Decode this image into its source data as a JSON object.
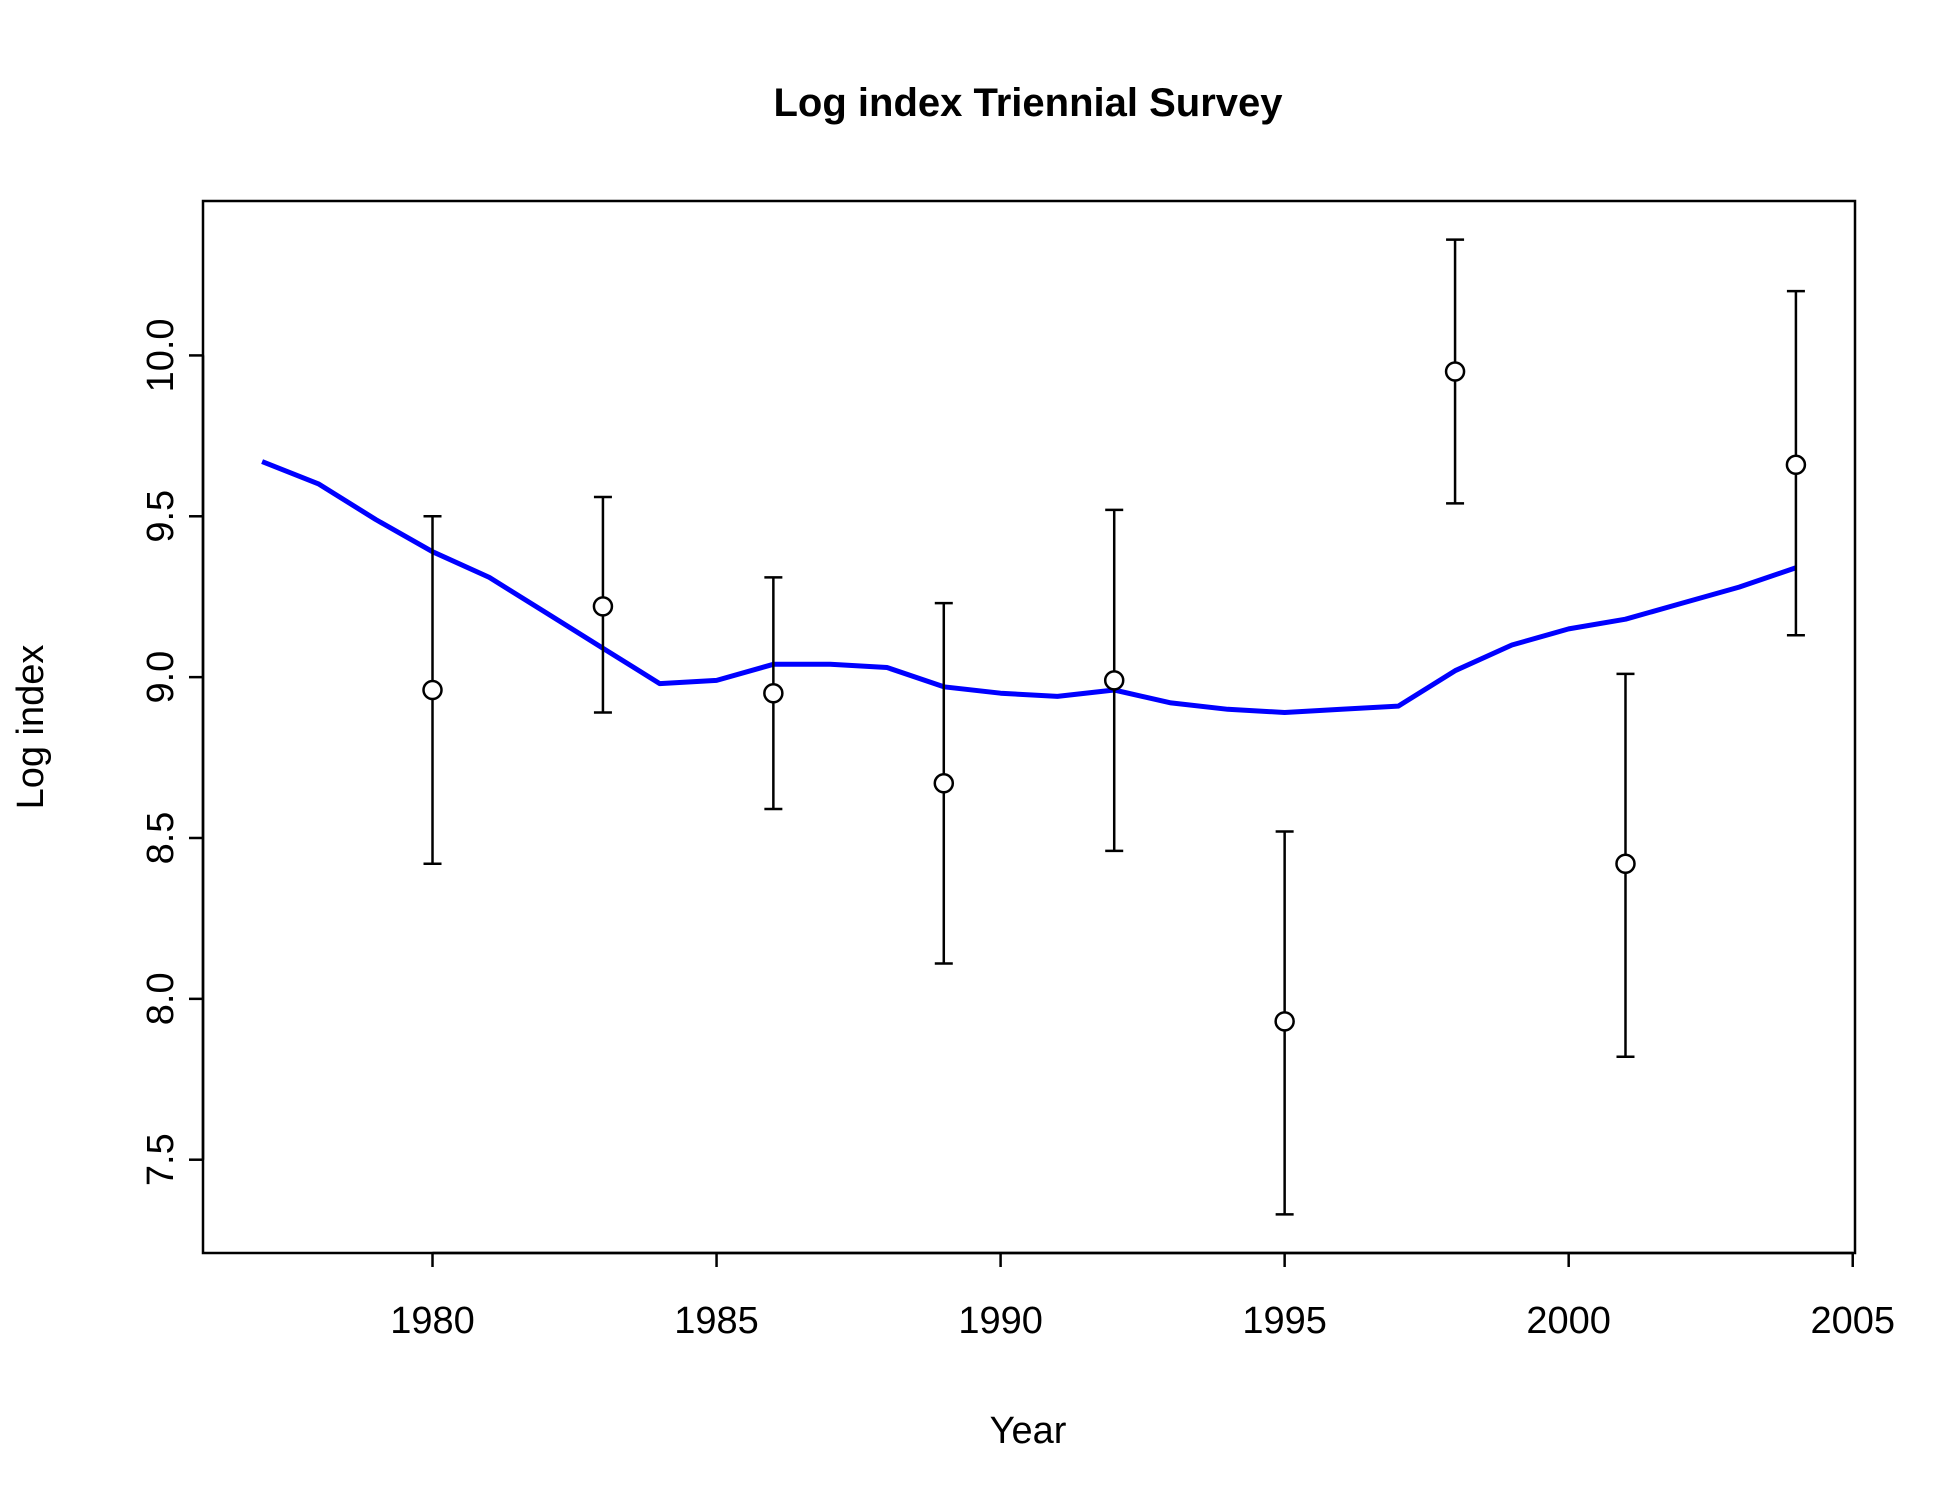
{
  "chart_data": {
    "type": "scatter",
    "title": "Log index Triennial Survey",
    "xlabel": "Year",
    "ylabel": "Log index",
    "xlim": [
      1975.96,
      2005.04
    ],
    "ylim": [
      7.21,
      10.48
    ],
    "x_ticks": [
      1980,
      1985,
      1990,
      1995,
      2000,
      2005
    ],
    "x_tick_labels": [
      "1980",
      "1985",
      "1990",
      "1995",
      "2000",
      "2005"
    ],
    "y_ticks": [
      7.5,
      8.0,
      8.5,
      9.0,
      9.5,
      10.0
    ],
    "y_tick_labels": [
      "7.5",
      "8.0",
      "8.5",
      "9.0",
      "9.5",
      "10.0"
    ],
    "grid": false,
    "legend": "none",
    "series": [
      {
        "kind": "observed",
        "marker": "open-circle",
        "color": "#000000",
        "x": [
          1980,
          1983,
          1986,
          1989,
          1992,
          1995,
          1998,
          2001,
          2004
        ],
        "y": [
          8.96,
          9.22,
          8.95,
          8.67,
          8.99,
          7.93,
          9.95,
          8.42,
          9.66
        ],
        "lower": [
          8.42,
          8.89,
          8.59,
          8.11,
          8.46,
          7.33,
          9.54,
          7.82,
          9.13
        ],
        "upper": [
          9.5,
          9.56,
          9.31,
          9.23,
          9.52,
          8.52,
          10.36,
          9.01,
          10.2
        ]
      },
      {
        "kind": "fitted",
        "line": "solid",
        "color": "#0000ff",
        "x": [
          1977,
          1978,
          1979,
          1980,
          1981,
          1982,
          1983,
          1984,
          1985,
          1986,
          1987,
          1988,
          1989,
          1990,
          1991,
          1992,
          1993,
          1994,
          1995,
          1996,
          1997,
          1998,
          1999,
          2000,
          2001,
          2002,
          2003,
          2004
        ],
        "y": [
          9.67,
          9.6,
          9.49,
          9.39,
          9.31,
          9.2,
          9.09,
          8.98,
          8.99,
          9.04,
          9.04,
          9.03,
          8.97,
          8.95,
          8.94,
          8.96,
          8.92,
          8.9,
          8.89,
          8.9,
          8.91,
          9.02,
          9.1,
          9.15,
          9.18,
          9.23,
          9.28,
          9.34
        ]
      }
    ]
  }
}
